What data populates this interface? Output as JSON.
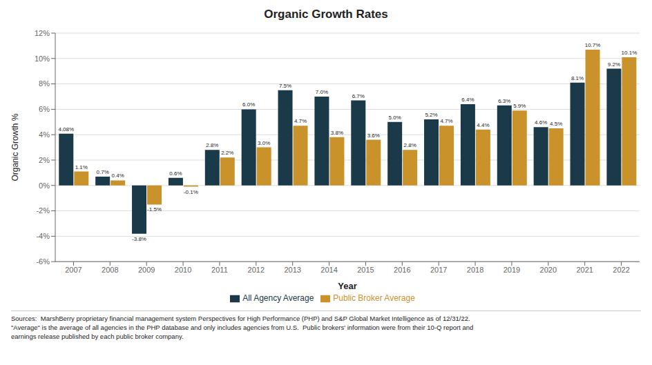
{
  "chart_data": {
    "type": "bar",
    "title": "Organic Growth Rates",
    "xlabel": "Year",
    "ylabel": "Organic Growth %",
    "categories": [
      "2007",
      "2008",
      "2009",
      "2010",
      "2011",
      "2012",
      "2013",
      "2014",
      "2015",
      "2016",
      "2017",
      "2018",
      "2019",
      "2020",
      "2021",
      "2022"
    ],
    "series": [
      {
        "name": "All Agency Average",
        "color": "#1a3a4a",
        "values": [
          4.08,
          0.7,
          -3.8,
          0.6,
          2.8,
          6.0,
          7.5,
          7.0,
          6.7,
          5.0,
          5.2,
          6.4,
          6.3,
          4.6,
          8.1,
          9.2
        ],
        "value_labels": [
          "4.08%",
          "0.7%",
          "-3.8%",
          "0.6%",
          "2.8%",
          "6.0%",
          "7.5%",
          "7.0%",
          "6.7%",
          "5.0%",
          "5.2%",
          "6.4%",
          "6.3%",
          "4.6%",
          "8.1%",
          "9.2%"
        ]
      },
      {
        "name": "Public Broker Average",
        "color": "#c9922a",
        "values": [
          1.1,
          0.4,
          -1.5,
          -0.1,
          2.2,
          3.0,
          4.7,
          3.8,
          3.6,
          2.8,
          4.7,
          4.4,
          5.9,
          4.5,
          10.7,
          10.1
        ],
        "value_labels": [
          "1.1%",
          "0.4%",
          "-1.5%",
          "-0.1%",
          "2.2%",
          "3.0%",
          "4.7%",
          "3.8%",
          "3.6%",
          "2.8%",
          "4.7%",
          "4.4%",
          "5.9%",
          "4.5%",
          "10.7%",
          "10.1%"
        ]
      }
    ],
    "ylim": [
      -6,
      12
    ],
    "yticks": [
      {
        "value": -6,
        "label": "-6%"
      },
      {
        "value": -4,
        "label": "-4%"
      },
      {
        "value": -2,
        "label": "-2%"
      },
      {
        "value": 0,
        "label": "0%"
      },
      {
        "value": 2,
        "label": "2%"
      },
      {
        "value": 4,
        "label": "4%"
      },
      {
        "value": 6,
        "label": "6%"
      },
      {
        "value": 8,
        "label": "8%"
      },
      {
        "value": 10,
        "label": "10%"
      },
      {
        "value": 12,
        "label": "12%"
      }
    ],
    "grid": true,
    "data_labels": true,
    "legend": "bottom",
    "annotations": [
      "Sources:  MarshBerry proprietary financial management system Perspectives for High Performance (PHP) and S&P Global Market Intelligence as of 12/31/22.",
      "\"Average\" is the average of all agencies in the PHP database and only includes agencies from U.S.  Public brokers' information were from their 10-Q report and",
      "earnings release published by each public broker company."
    ]
  }
}
